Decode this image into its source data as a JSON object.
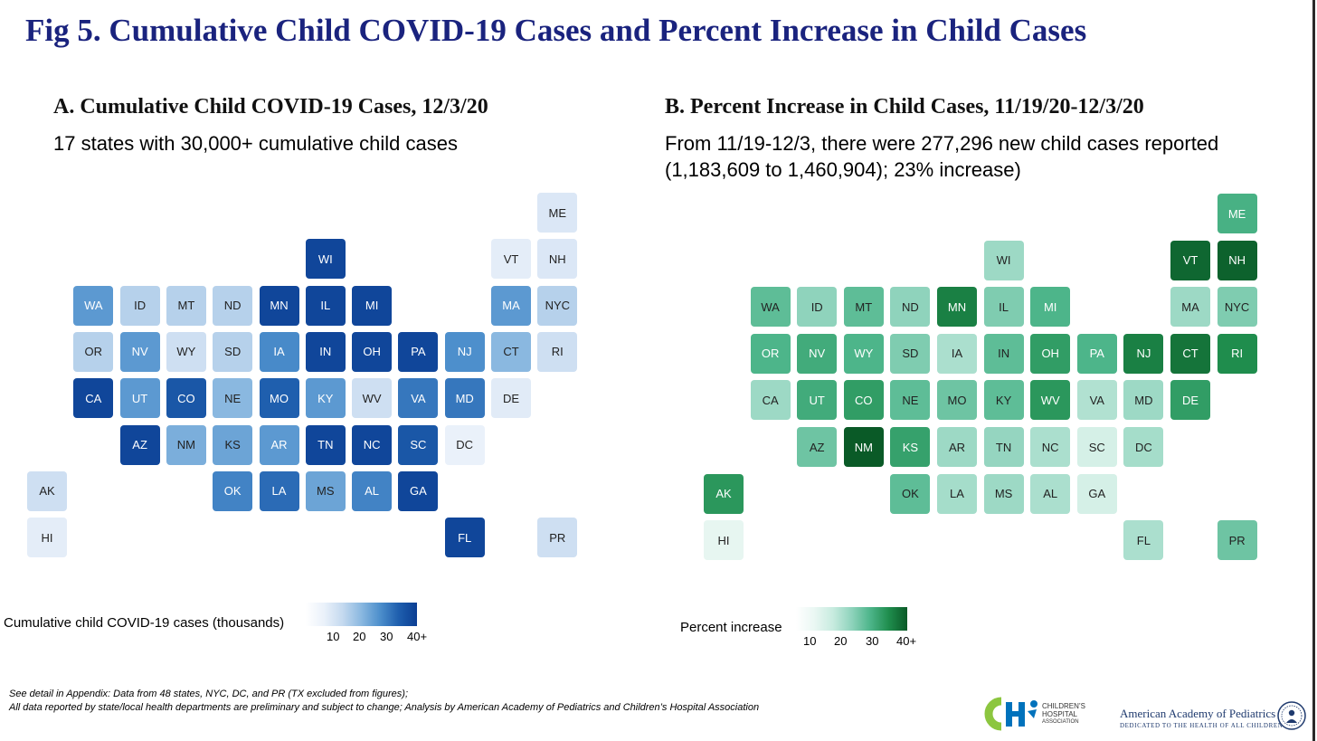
{
  "title": "Fig 5. Cumulative Child COVID-19 Cases and Percent Increase in Child Cases",
  "panels": [
    {
      "id": "cases",
      "title": "A. Cumulative Child COVID-19 Cases, 12/3/20",
      "subtitle": "17 states with 30,000+ cumulative child cases",
      "legend_title": "Cumulative child COVID-19 cases (thousands)",
      "legend_ticks": [
        "10",
        "20",
        "30",
        "40+"
      ],
      "color_scale": [
        "#eaf1fa",
        "#c4d9ef",
        "#8ab8e0",
        "#4d8fcc",
        "#1f5fae",
        "#0b3e93"
      ]
    },
    {
      "id": "increase",
      "title": "B. Percent Increase in Child Cases, 11/19/20-12/3/20",
      "subtitle_lines": [
        "From 11/19-12/3, there were 277,296 new child cases reported",
        "(1,183,609 to 1,460,904); 23% increase)"
      ],
      "legend_title": "Percent increase",
      "legend_ticks": [
        "10",
        "20",
        "30",
        "40+"
      ],
      "color_scale": [
        "#eaf7f3",
        "#c7ebdf",
        "#8fd3bc",
        "#4db58a",
        "#1f8d4d",
        "#0a5a27"
      ]
    }
  ],
  "chart_data": [
    {
      "type": "heatmap",
      "title": "A. Cumulative Child COVID-19 Cases, 12/3/20",
      "subtitle": "17 states with 30,000+ cumulative child cases",
      "value_label": "Cumulative child COVID-19 cases (thousands)",
      "scale_ticks": [
        "10",
        "20",
        "30",
        "40+"
      ],
      "cells": [
        {
          "state": "ME",
          "row": 0,
          "col": 11,
          "level": 0.08
        },
        {
          "state": "WI",
          "row": 1,
          "col": 6,
          "level": 0.95
        },
        {
          "state": "VT",
          "row": 1,
          "col": 10,
          "level": 0.03
        },
        {
          "state": "NH",
          "row": 1,
          "col": 11,
          "level": 0.08
        },
        {
          "state": "WA",
          "row": 2,
          "col": 1,
          "level": 0.55
        },
        {
          "state": "ID",
          "row": 2,
          "col": 2,
          "level": 0.25
        },
        {
          "state": "MT",
          "row": 2,
          "col": 3,
          "level": 0.25
        },
        {
          "state": "ND",
          "row": 2,
          "col": 4,
          "level": 0.25
        },
        {
          "state": "MN",
          "row": 2,
          "col": 5,
          "level": 0.95
        },
        {
          "state": "IL",
          "row": 2,
          "col": 6,
          "level": 0.95
        },
        {
          "state": "MI",
          "row": 2,
          "col": 7,
          "level": 0.95
        },
        {
          "state": "MA",
          "row": 2,
          "col": 10,
          "level": 0.55
        },
        {
          "state": "NYC",
          "row": 2,
          "col": 11,
          "level": 0.25
        },
        {
          "state": "OR",
          "row": 3,
          "col": 1,
          "level": 0.25
        },
        {
          "state": "NV",
          "row": 3,
          "col": 2,
          "level": 0.55
        },
        {
          "state": "WY",
          "row": 3,
          "col": 3,
          "level": 0.15
        },
        {
          "state": "SD",
          "row": 3,
          "col": 4,
          "level": 0.25
        },
        {
          "state": "IA",
          "row": 3,
          "col": 5,
          "level": 0.62
        },
        {
          "state": "IN",
          "row": 3,
          "col": 6,
          "level": 0.95
        },
        {
          "state": "OH",
          "row": 3,
          "col": 7,
          "level": 0.95
        },
        {
          "state": "PA",
          "row": 3,
          "col": 8,
          "level": 0.95
        },
        {
          "state": "NJ",
          "row": 3,
          "col": 9,
          "level": 0.6
        },
        {
          "state": "CT",
          "row": 3,
          "col": 10,
          "level": 0.4
        },
        {
          "state": "RI",
          "row": 3,
          "col": 11,
          "level": 0.15
        },
        {
          "state": "CA",
          "row": 4,
          "col": 1,
          "level": 0.95
        },
        {
          "state": "UT",
          "row": 4,
          "col": 2,
          "level": 0.55
        },
        {
          "state": "CO",
          "row": 4,
          "col": 3,
          "level": 0.85
        },
        {
          "state": "NE",
          "row": 4,
          "col": 4,
          "level": 0.4
        },
        {
          "state": "MO",
          "row": 4,
          "col": 5,
          "level": 0.8
        },
        {
          "state": "KY",
          "row": 4,
          "col": 6,
          "level": 0.55
        },
        {
          "state": "WV",
          "row": 4,
          "col": 7,
          "level": 0.15
        },
        {
          "state": "VA",
          "row": 4,
          "col": 8,
          "level": 0.7
        },
        {
          "state": "MD",
          "row": 4,
          "col": 9,
          "level": 0.7
        },
        {
          "state": "DE",
          "row": 4,
          "col": 10,
          "level": 0.05
        },
        {
          "state": "AZ",
          "row": 5,
          "col": 2,
          "level": 0.95
        },
        {
          "state": "NM",
          "row": 5,
          "col": 3,
          "level": 0.45
        },
        {
          "state": "KS",
          "row": 5,
          "col": 4,
          "level": 0.5
        },
        {
          "state": "AR",
          "row": 5,
          "col": 5,
          "level": 0.55
        },
        {
          "state": "TN",
          "row": 5,
          "col": 6,
          "level": 0.95
        },
        {
          "state": "NC",
          "row": 5,
          "col": 7,
          "level": 0.95
        },
        {
          "state": "SC",
          "row": 5,
          "col": 8,
          "level": 0.85
        },
        {
          "state": "DC",
          "row": 5,
          "col": 9,
          "level": 0.0
        },
        {
          "state": "AK",
          "row": 6,
          "col": 0,
          "level": 0.15
        },
        {
          "state": "OK",
          "row": 6,
          "col": 4,
          "level": 0.65
        },
        {
          "state": "LA",
          "row": 6,
          "col": 5,
          "level": 0.75
        },
        {
          "state": "MS",
          "row": 6,
          "col": 6,
          "level": 0.5
        },
        {
          "state": "AL",
          "row": 6,
          "col": 7,
          "level": 0.65
        },
        {
          "state": "GA",
          "row": 6,
          "col": 8,
          "level": 0.95
        },
        {
          "state": "HI",
          "row": 7,
          "col": 0,
          "level": 0.03
        },
        {
          "state": "FL",
          "row": 7,
          "col": 9,
          "level": 0.95
        },
        {
          "state": "PR",
          "row": 7,
          "col": 11,
          "level": 0.15
        }
      ]
    },
    {
      "type": "heatmap",
      "title": "B. Percent Increase in Child Cases, 11/19/20-12/3/20",
      "subtitle": "From 11/19-12/3, there were 277,296 new child cases reported (1,183,609 to 1,460,904); 23% increase)",
      "value_label": "Percent increase",
      "scale_ticks": [
        "10",
        "20",
        "30",
        "40+"
      ],
      "cells": [
        {
          "state": "ME",
          "row": 0,
          "col": 11,
          "level": 0.62
        },
        {
          "state": "WI",
          "row": 1,
          "col": 6,
          "level": 0.35
        },
        {
          "state": "VT",
          "row": 1,
          "col": 10,
          "level": 0.95
        },
        {
          "state": "NH",
          "row": 1,
          "col": 11,
          "level": 0.97
        },
        {
          "state": "WA",
          "row": 2,
          "col": 1,
          "level": 0.55
        },
        {
          "state": "ID",
          "row": 2,
          "col": 2,
          "level": 0.4
        },
        {
          "state": "MT",
          "row": 2,
          "col": 3,
          "level": 0.55
        },
        {
          "state": "ND",
          "row": 2,
          "col": 4,
          "level": 0.4
        },
        {
          "state": "MN",
          "row": 2,
          "col": 5,
          "level": 0.85
        },
        {
          "state": "IL",
          "row": 2,
          "col": 6,
          "level": 0.45
        },
        {
          "state": "MI",
          "row": 2,
          "col": 7,
          "level": 0.6
        },
        {
          "state": "MA",
          "row": 2,
          "col": 10,
          "level": 0.35
        },
        {
          "state": "NYC",
          "row": 2,
          "col": 11,
          "level": 0.45
        },
        {
          "state": "OR",
          "row": 3,
          "col": 1,
          "level": 0.6
        },
        {
          "state": "NV",
          "row": 3,
          "col": 2,
          "level": 0.65
        },
        {
          "state": "WY",
          "row": 3,
          "col": 3,
          "level": 0.6
        },
        {
          "state": "SD",
          "row": 3,
          "col": 4,
          "level": 0.45
        },
        {
          "state": "IA",
          "row": 3,
          "col": 5,
          "level": 0.3
        },
        {
          "state": "IN",
          "row": 3,
          "col": 6,
          "level": 0.55
        },
        {
          "state": "OH",
          "row": 3,
          "col": 7,
          "level": 0.72
        },
        {
          "state": "PA",
          "row": 3,
          "col": 8,
          "level": 0.6
        },
        {
          "state": "NJ",
          "row": 3,
          "col": 9,
          "level": 0.85
        },
        {
          "state": "CT",
          "row": 3,
          "col": 10,
          "level": 0.9
        },
        {
          "state": "RI",
          "row": 3,
          "col": 11,
          "level": 0.8
        },
        {
          "state": "CA",
          "row": 4,
          "col": 1,
          "level": 0.35
        },
        {
          "state": "UT",
          "row": 4,
          "col": 2,
          "level": 0.65
        },
        {
          "state": "CO",
          "row": 4,
          "col": 3,
          "level": 0.72
        },
        {
          "state": "NE",
          "row": 4,
          "col": 4,
          "level": 0.55
        },
        {
          "state": "MO",
          "row": 4,
          "col": 5,
          "level": 0.5
        },
        {
          "state": "KY",
          "row": 4,
          "col": 6,
          "level": 0.55
        },
        {
          "state": "WV",
          "row": 4,
          "col": 7,
          "level": 0.75
        },
        {
          "state": "VA",
          "row": 4,
          "col": 8,
          "level": 0.28
        },
        {
          "state": "MD",
          "row": 4,
          "col": 9,
          "level": 0.35
        },
        {
          "state": "DE",
          "row": 4,
          "col": 10,
          "level": 0.72
        },
        {
          "state": "AZ",
          "row": 5,
          "col": 2,
          "level": 0.5
        },
        {
          "state": "NM",
          "row": 5,
          "col": 3,
          "level": 1.0
        },
        {
          "state": "KS",
          "row": 5,
          "col": 4,
          "level": 0.7
        },
        {
          "state": "AR",
          "row": 5,
          "col": 5,
          "level": 0.35
        },
        {
          "state": "TN",
          "row": 5,
          "col": 6,
          "level": 0.38
        },
        {
          "state": "NC",
          "row": 5,
          "col": 7,
          "level": 0.3
        },
        {
          "state": "SC",
          "row": 5,
          "col": 8,
          "level": 0.12
        },
        {
          "state": "DC",
          "row": 5,
          "col": 9,
          "level": 0.32
        },
        {
          "state": "AK",
          "row": 6,
          "col": 0,
          "level": 0.75
        },
        {
          "state": "OK",
          "row": 6,
          "col": 4,
          "level": 0.55
        },
        {
          "state": "LA",
          "row": 6,
          "col": 5,
          "level": 0.32
        },
        {
          "state": "MS",
          "row": 6,
          "col": 6,
          "level": 0.35
        },
        {
          "state": "AL",
          "row": 6,
          "col": 7,
          "level": 0.3
        },
        {
          "state": "GA",
          "row": 6,
          "col": 8,
          "level": 0.12
        },
        {
          "state": "HI",
          "row": 7,
          "col": 0,
          "level": 0.02
        },
        {
          "state": "FL",
          "row": 7,
          "col": 9,
          "level": 0.3
        },
        {
          "state": "PR",
          "row": 7,
          "col": 11,
          "level": 0.5
        }
      ]
    }
  ],
  "footnote": {
    "line1": "See detail in Appendix: Data from 48 states, NYC, DC, and PR (TX excluded from figures);",
    "line2": "All data reported by state/local health departments are preliminary and subject to change; Analysis by American Academy of Pediatrics and Children’s Hospital Association"
  },
  "logos": {
    "cha_lines": [
      "CHILDREN’S",
      "HOSPITAL",
      "ASSOCIATION"
    ],
    "aap_name": "American Academy of Pediatrics",
    "aap_tagline": "DEDICATED TO THE HEALTH OF ALL CHILDREN®"
  },
  "colors": {
    "title_navy": "#1a237e",
    "cha_green": "#8cc63f",
    "cha_blue": "#0072bc",
    "aap_navy": "#1f3a6e"
  }
}
